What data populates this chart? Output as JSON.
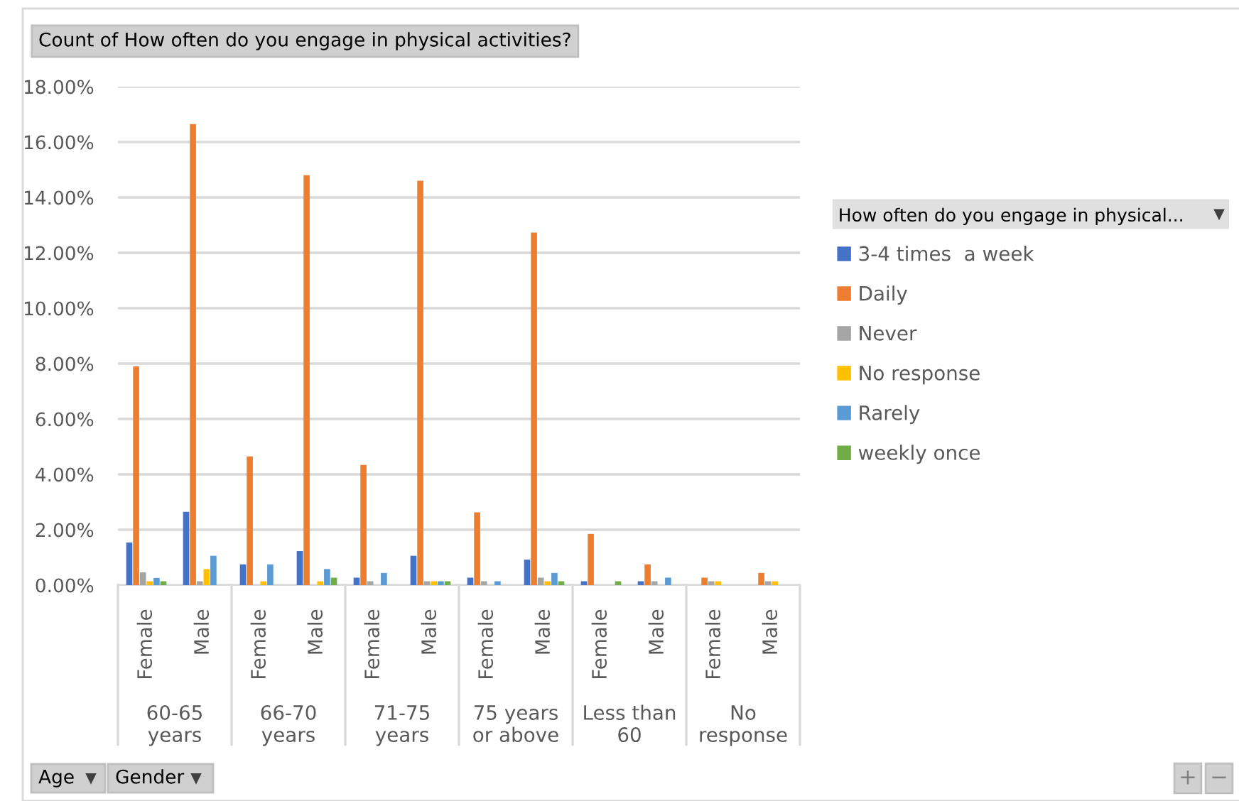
{
  "chart_data": {
    "type": "bar",
    "title": "Count of How often do you engage in physical activities?",
    "legend_title": "How often do you engage in physical...",
    "categories": [
      "Female",
      "Male",
      "Female",
      "Male",
      "Female",
      "Male",
      "Female",
      "Male",
      "Female",
      "Male",
      "Female",
      "Male"
    ],
    "series": [
      {
        "name": "3-4 times  a week",
        "color": "#4472c4",
        "values": [
          1.54,
          2.65,
          0.75,
          1.23,
          0.27,
          1.06,
          0.27,
          0.92,
          0.14,
          0.14,
          null,
          null
        ]
      },
      {
        "name": "Daily",
        "color": "#ed7d31",
        "values": [
          7.9,
          16.65,
          4.65,
          14.8,
          4.34,
          14.6,
          2.63,
          12.73,
          1.85,
          0.75,
          0.27,
          0.44
        ]
      },
      {
        "name": "Never",
        "color": "#a5a5a5",
        "values": [
          0.46,
          0.14,
          null,
          null,
          0.14,
          0.14,
          0.14,
          0.27,
          null,
          0.14,
          0.14,
          0.14
        ]
      },
      {
        "name": "No response",
        "color": "#ffc000",
        "values": [
          0.14,
          0.58,
          0.14,
          0.14,
          null,
          0.14,
          null,
          0.14,
          null,
          null,
          0.14,
          0.14
        ]
      },
      {
        "name": "Rarely",
        "color": "#5b9bd5",
        "values": [
          0.26,
          1.06,
          0.75,
          0.58,
          0.44,
          0.14,
          0.14,
          0.44,
          null,
          0.27,
          null,
          null
        ]
      },
      {
        "name": "weekly once",
        "color": "#70ad47",
        "values": [
          0.14,
          null,
          null,
          0.27,
          null,
          0.14,
          null,
          0.14,
          0.14,
          null,
          null,
          null
        ]
      }
    ],
    "ylim": [
      0,
      18
    ],
    "yticks": [
      {
        "value": 0,
        "label": "0.00%"
      },
      {
        "value": 2,
        "label": "2.00%"
      },
      {
        "value": 4,
        "label": "4.00%"
      },
      {
        "value": 6,
        "label": "6.00%"
      },
      {
        "value": 8,
        "label": "8.00%"
      },
      {
        "value": 10,
        "label": "10.00%"
      },
      {
        "value": 12,
        "label": "12.00%"
      },
      {
        "value": 14,
        "label": "14.00%"
      },
      {
        "value": 16,
        "label": "16.00%"
      },
      {
        "value": 18,
        "label": "18.00%"
      }
    ],
    "grid": "y",
    "legend": "right",
    "annotations": [
      "60-65 years",
      "66-70 years",
      "71-75 years",
      "75 years or above",
      "Less than 60",
      "No response",
      "Age",
      "Gender",
      "+",
      "−"
    ]
  }
}
